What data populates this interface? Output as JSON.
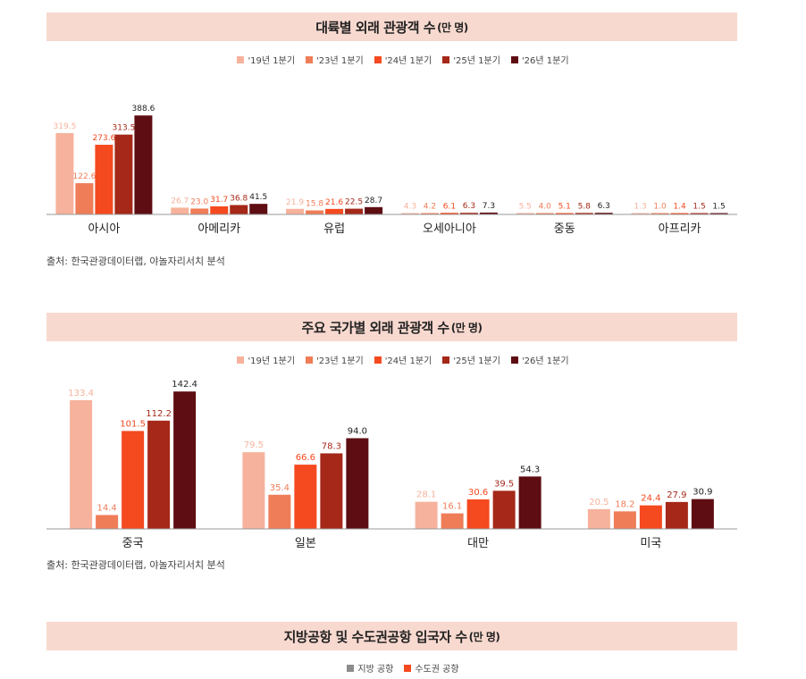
{
  "colors": [
    "#f6b29c",
    "#ef7d58",
    "#f5491f",
    "#a52818",
    "#5e0d12"
  ],
  "label_colors": [
    "#f6b29c",
    "#ef7d58",
    "#f5491f",
    "#a52818",
    "#5e0d12"
  ],
  "legend_labels": [
    "'19년 1분기",
    "'23년 1분기",
    "'24년 1분기",
    "'25년 1분기",
    "'26년 1분기"
  ],
  "chart1": {
    "title_main": "대륙별 외래 관광객 수",
    "title_unit": "(만 명)",
    "source": "출처: 한국관광데이터랩, 야놀자리서치 분석"
  },
  "chart2": {
    "title_main": "주요 국가별 외래 관광객 수",
    "title_unit": "(만 명)",
    "source": "출처: 한국관광데이터랩, 야놀자리서치 분석"
  },
  "chart3": {
    "title_main": "지방공항 및 수도권공항 입국자 수",
    "title_unit": "(만 명)",
    "legend": [
      "지방 공항",
      "수도권 공항"
    ],
    "legend_colors": [
      "#8c8c8c",
      "#f5491f"
    ]
  },
  "chart_data": [
    {
      "type": "bar",
      "title": "대륙별 외래 관광객 수(만 명)",
      "categories": [
        "아시아",
        "아메리카",
        "유럽",
        "오세아니아",
        "중동",
        "아프리카"
      ],
      "series": [
        {
          "name": "'19년 1분기",
          "values": [
            319.5,
            26.7,
            21.9,
            4.3,
            5.5,
            1.3
          ]
        },
        {
          "name": "'23년 1분기",
          "values": [
            122.6,
            23.0,
            15.8,
            4.2,
            4.0,
            1.0
          ]
        },
        {
          "name": "'24년 1분기",
          "values": [
            273.6,
            31.7,
            21.6,
            6.1,
            5.1,
            1.4
          ]
        },
        {
          "name": "'25년 1분기",
          "values": [
            313.5,
            36.8,
            22.5,
            6.3,
            5.8,
            1.5
          ]
        },
        {
          "name": "'26년 1분기",
          "values": [
            388.6,
            41.5,
            28.7,
            7.3,
            6.3,
            1.5
          ]
        }
      ],
      "ylim": [
        0,
        400
      ]
    },
    {
      "type": "bar",
      "title": "주요 국가별 외래 관광객 수(만 명)",
      "categories": [
        "중국",
        "일본",
        "대만",
        "미국"
      ],
      "series": [
        {
          "name": "'19년 1분기",
          "values": [
            133.4,
            79.5,
            28.1,
            20.5
          ]
        },
        {
          "name": "'23년 1분기",
          "values": [
            14.4,
            35.4,
            16.1,
            18.2
          ]
        },
        {
          "name": "'24년 1분기",
          "values": [
            101.5,
            66.6,
            30.6,
            24.4
          ]
        },
        {
          "name": "'25년 1분기",
          "values": [
            112.2,
            78.3,
            39.5,
            27.9
          ]
        },
        {
          "name": "'26년 1분기",
          "values": [
            142.4,
            94.0,
            54.3,
            30.9
          ]
        }
      ],
      "ylim": [
        0,
        150
      ]
    }
  ]
}
